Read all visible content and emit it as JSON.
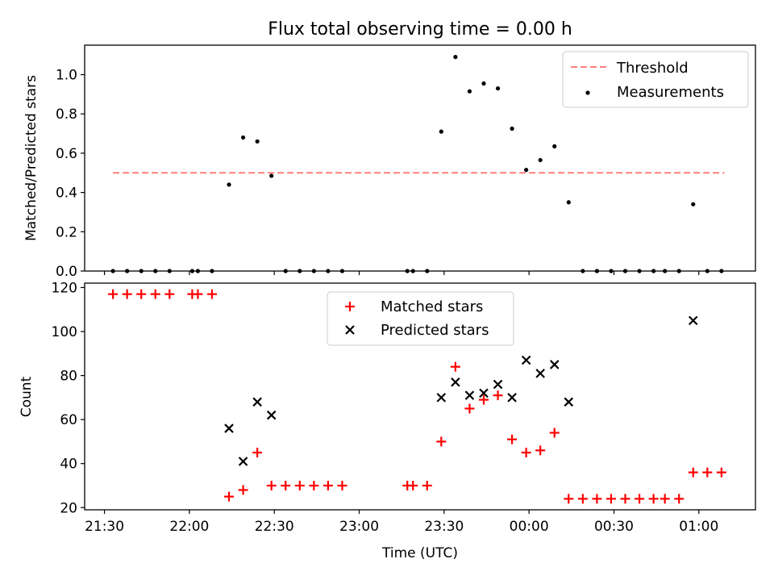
{
  "title": "Flux total observing time = 0.00 h",
  "colors": {
    "threshold": "#ff7f7f",
    "measurements": "#000000",
    "matched": "#ff0000",
    "predicted": "#000000"
  },
  "chart_data": [
    {
      "type": "scatter",
      "title": "Flux total observing time = 0.00 h",
      "xlabel": "",
      "ylabel": "Matched/Predicted stars",
      "ylim": [
        0,
        1.15
      ],
      "yticks": [
        "0.0",
        "0.2",
        "0.4",
        "0.6",
        "0.8",
        "1.0"
      ],
      "xlim_minutes": [
        1283,
        1520
      ],
      "legend_position": "top-right",
      "threshold": {
        "name": "Threshold",
        "value": 0.5,
        "x_range_minutes": [
          1293,
          1509
        ]
      },
      "series": [
        {
          "name": "Measurements",
          "points": [
            [
              "21:33",
              0
            ],
            [
              "21:38",
              0
            ],
            [
              "21:43",
              0
            ],
            [
              "21:48",
              0
            ],
            [
              "21:53",
              0
            ],
            [
              "22:01",
              0
            ],
            [
              "22:03",
              0
            ],
            [
              "22:08",
              0
            ],
            [
              "22:14",
              0.44
            ],
            [
              "22:19",
              0.68
            ],
            [
              "22:24",
              0.66
            ],
            [
              "22:29",
              0.485
            ],
            [
              "22:34",
              0
            ],
            [
              "22:39",
              0
            ],
            [
              "22:44",
              0
            ],
            [
              "22:49",
              0
            ],
            [
              "22:54",
              0
            ],
            [
              "23:17",
              0
            ],
            [
              "23:19",
              0
            ],
            [
              "23:24",
              0
            ],
            [
              "23:29",
              0.71
            ],
            [
              "23:34",
              1.09
            ],
            [
              "23:39",
              0.915
            ],
            [
              "23:44",
              0.955
            ],
            [
              "23:49",
              0.93
            ],
            [
              "23:54",
              0.725
            ],
            [
              "23:59",
              0.515
            ],
            [
              "00:04",
              0.565
            ],
            [
              "00:09",
              0.635
            ],
            [
              "00:14",
              0.35
            ],
            [
              "00:19",
              0
            ],
            [
              "00:24",
              0
            ],
            [
              "00:29",
              0
            ],
            [
              "00:34",
              0
            ],
            [
              "00:39",
              0
            ],
            [
              "00:44",
              0
            ],
            [
              "00:48",
              0
            ],
            [
              "00:53",
              0
            ],
            [
              "00:58",
              0.34
            ],
            [
              "01:03",
              0
            ],
            [
              "01:08",
              0
            ]
          ]
        }
      ]
    },
    {
      "type": "scatter",
      "title": "",
      "xlabel": "Time (UTC)",
      "ylabel": "Count",
      "ylim": [
        19,
        122
      ],
      "yticks": [
        "20",
        "40",
        "60",
        "80",
        "100",
        "120"
      ],
      "xlim_minutes": [
        1283,
        1520
      ],
      "xticks": [
        "21:30",
        "22:00",
        "22:30",
        "23:00",
        "23:30",
        "00:00",
        "00:30",
        "01:00"
      ],
      "legend_position": "top-center",
      "series": [
        {
          "name": "Matched stars",
          "marker": "+",
          "points": [
            [
              "21:33",
              117
            ],
            [
              "21:38",
              117
            ],
            [
              "21:43",
              117
            ],
            [
              "21:48",
              117
            ],
            [
              "21:53",
              117
            ],
            [
              "22:01",
              117
            ],
            [
              "22:03",
              117
            ],
            [
              "22:08",
              117
            ],
            [
              "22:14",
              25
            ],
            [
              "22:19",
              28
            ],
            [
              "22:24",
              45
            ],
            [
              "22:29",
              30
            ],
            [
              "22:34",
              30
            ],
            [
              "22:39",
              30
            ],
            [
              "22:44",
              30
            ],
            [
              "22:49",
              30
            ],
            [
              "22:54",
              30
            ],
            [
              "23:17",
              30
            ],
            [
              "23:19",
              30
            ],
            [
              "23:24",
              30
            ],
            [
              "23:29",
              50
            ],
            [
              "23:34",
              84
            ],
            [
              "23:39",
              65
            ],
            [
              "23:44",
              69
            ],
            [
              "23:49",
              71
            ],
            [
              "23:54",
              51
            ],
            [
              "23:59",
              45
            ],
            [
              "00:04",
              46
            ],
            [
              "00:09",
              54
            ],
            [
              "00:14",
              24
            ],
            [
              "00:19",
              24
            ],
            [
              "00:24",
              24
            ],
            [
              "00:29",
              24
            ],
            [
              "00:34",
              24
            ],
            [
              "00:39",
              24
            ],
            [
              "00:44",
              24
            ],
            [
              "00:48",
              24
            ],
            [
              "00:53",
              24
            ],
            [
              "00:58",
              36
            ],
            [
              "01:03",
              36
            ],
            [
              "01:08",
              36
            ]
          ]
        },
        {
          "name": "Predicted stars",
          "marker": "x",
          "points": [
            [
              "22:14",
              56
            ],
            [
              "22:19",
              41
            ],
            [
              "22:24",
              68
            ],
            [
              "22:29",
              62
            ],
            [
              "23:29",
              70
            ],
            [
              "23:34",
              77
            ],
            [
              "23:39",
              71
            ],
            [
              "23:44",
              72
            ],
            [
              "23:49",
              76
            ],
            [
              "23:54",
              70
            ],
            [
              "23:59",
              87
            ],
            [
              "00:04",
              81
            ],
            [
              "00:09",
              85
            ],
            [
              "00:14",
              68
            ],
            [
              "00:58",
              105
            ]
          ]
        }
      ]
    }
  ]
}
